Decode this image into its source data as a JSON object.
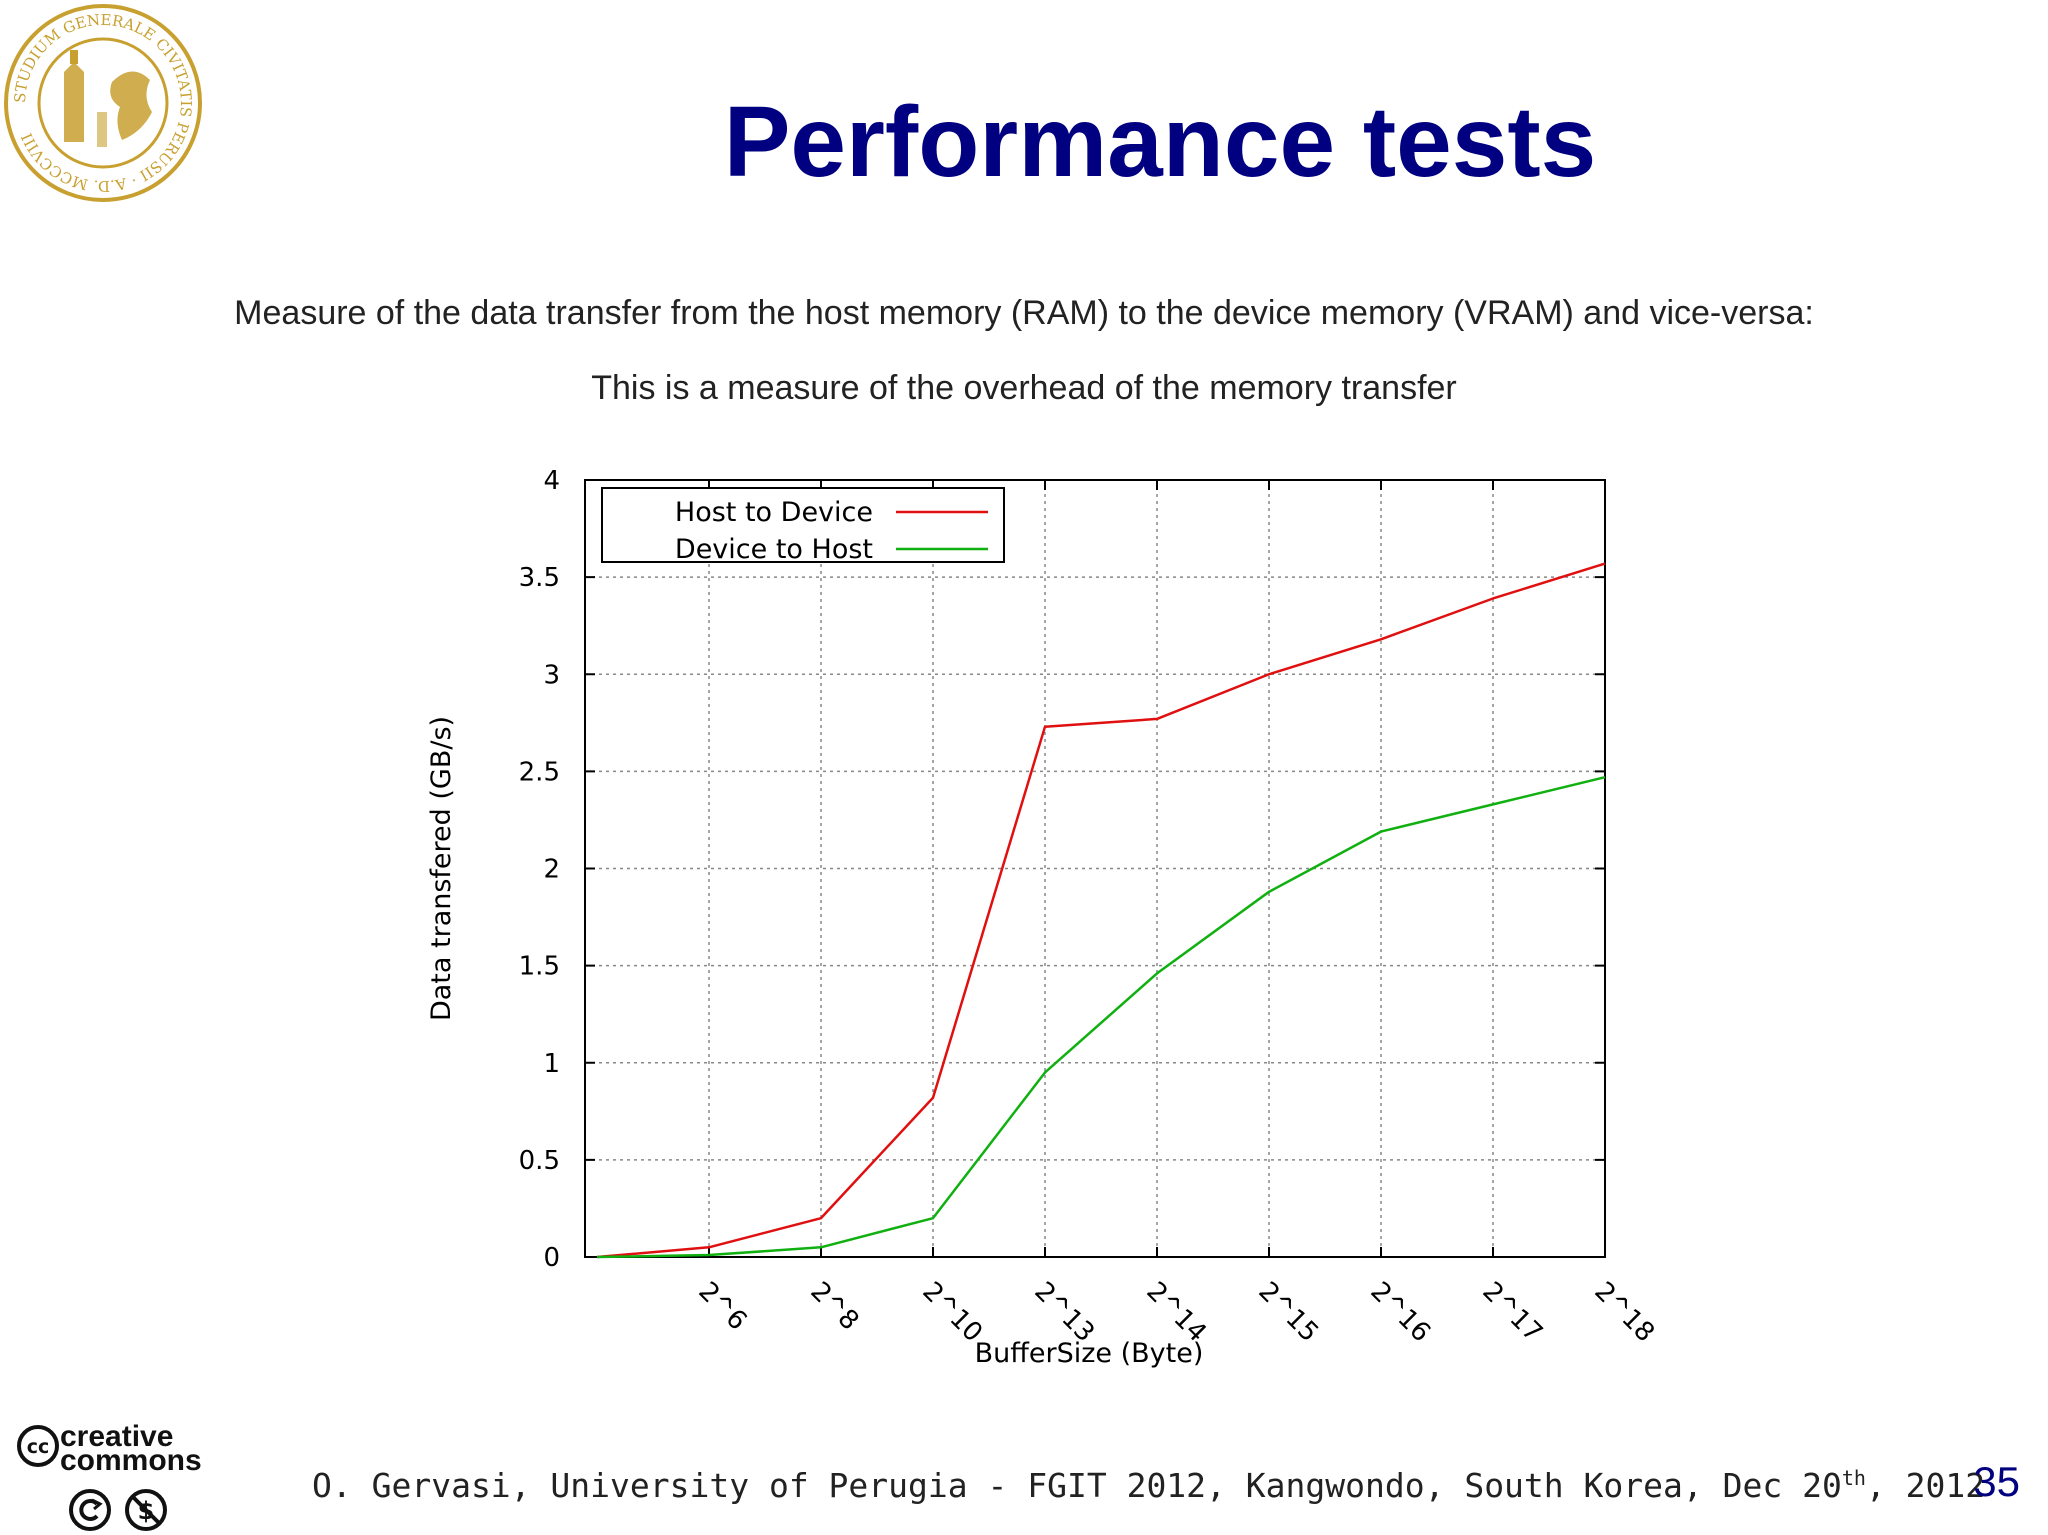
{
  "slide": {
    "title": "Performance tests",
    "subtitle_1": "Measure of the data transfer from the host memory (RAM) to the device memory (VRAM) and vice-versa:",
    "subtitle_2": "This is a measure of the overhead of the memory transfer",
    "footer_main": "O. Gervasi, University of Perugia -  FGIT 2012, Kangwondo, South Korea, Dec 20",
    "footer_sup": "th",
    "footer_tail": ", 2012",
    "page_number": "35",
    "seal_text": "STUDIUM GENERALE CIVITATIS PERUSII · A.D. MCCCVIII",
    "cc_logo_text_1": "creative",
    "cc_logo_text_2": "commons"
  },
  "colors": {
    "title": "#000080",
    "host_to_device": "#e01010",
    "device_to_host": "#10b010",
    "seal": "#c8a030"
  },
  "chart_data": {
    "type": "line",
    "xlabel": "BufferSize (Byte)",
    "ylabel": "Data transfered (GB/s)",
    "categories": [
      "",
      "2^6",
      "2^8",
      "2^10",
      "2^13",
      "2^14",
      "2^15",
      "2^16",
      "2^17",
      "2^18"
    ],
    "ylim": [
      0,
      4
    ],
    "yticks": [
      "0",
      "0.5",
      "1",
      "1.5",
      "2",
      "2.5",
      "3",
      "3.5",
      "4"
    ],
    "grid": true,
    "legend_position": "top-left",
    "series": [
      {
        "name": "Host to Device",
        "values": [
          0.0,
          0.05,
          0.2,
          0.82,
          2.73,
          2.77,
          3.0,
          3.18,
          3.39,
          3.57
        ]
      },
      {
        "name": "Device to Host",
        "values": [
          0.0,
          0.01,
          0.05,
          0.2,
          0.95,
          1.46,
          1.88,
          2.19,
          2.33,
          2.47
        ]
      }
    ]
  }
}
